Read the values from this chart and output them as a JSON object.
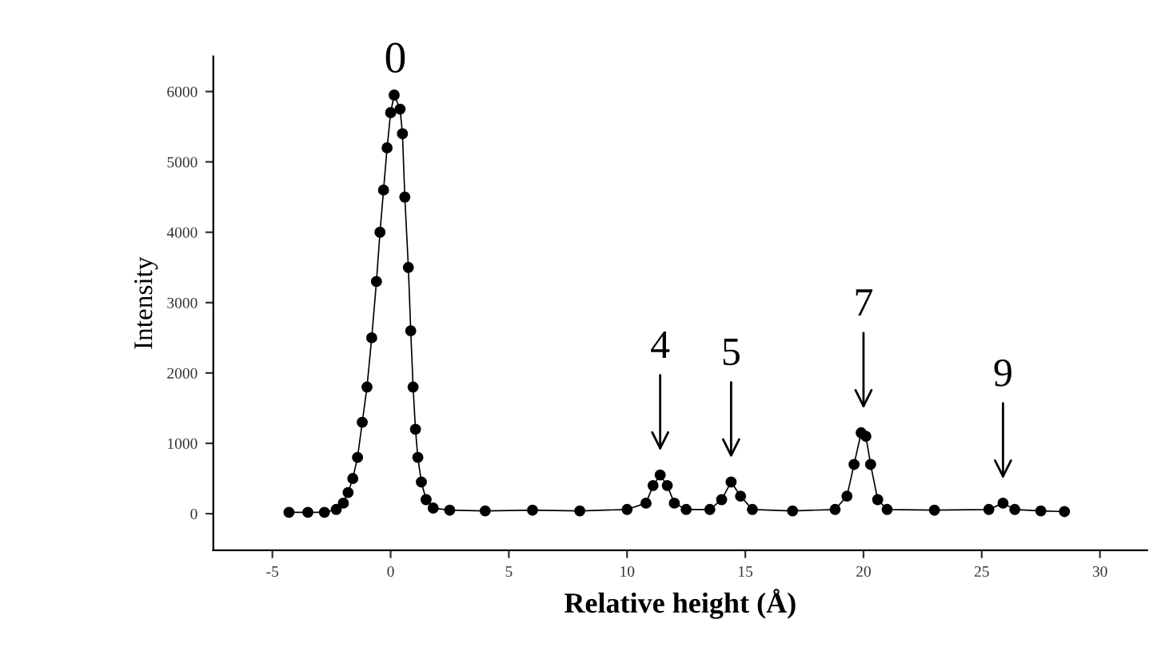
{
  "chart_data": {
    "type": "line",
    "xlabel": "Relative height (Å)",
    "ylabel": "Intensity",
    "x": [
      -4.3,
      -3.5,
      -2.8,
      -2.3,
      -2.0,
      -1.8,
      -1.6,
      -1.4,
      -1.2,
      -1.0,
      -0.8,
      -0.6,
      -0.45,
      -0.3,
      -0.15,
      0.0,
      0.15,
      0.4,
      0.5,
      0.6,
      0.75,
      0.85,
      0.95,
      1.05,
      1.15,
      1.3,
      1.5,
      1.8,
      2.5,
      4,
      6,
      8,
      10,
      10.8,
      11.1,
      11.4,
      11.7,
      12.0,
      12.5,
      13.5,
      14.0,
      14.4,
      14.8,
      15.3,
      17,
      18.8,
      19.3,
      19.6,
      19.9,
      20.1,
      20.3,
      20.6,
      21,
      23,
      25.3,
      25.9,
      26.4,
      27.5,
      28.5
    ],
    "series": [
      {
        "color": "#000000",
        "values": [
          20,
          20,
          20,
          60,
          150,
          300,
          500,
          800,
          1300,
          1800,
          2500,
          3300,
          4000,
          4600,
          5200,
          5700,
          5950,
          5750,
          5400,
          4500,
          3500,
          2600,
          1800,
          1200,
          800,
          450,
          200,
          80,
          50,
          40,
          50,
          40,
          60,
          150,
          400,
          550,
          400,
          150,
          60,
          60,
          200,
          450,
          250,
          60,
          40,
          60,
          250,
          700,
          1150,
          1100,
          700,
          200,
          60,
          50,
          60,
          150,
          60,
          40,
          30
        ]
      }
    ],
    "marker": "circle",
    "line_style": "solid",
    "grid": false,
    "xlim": [
      -7.5,
      32
    ],
    "ylim": [
      -520,
      6500
    ],
    "xticks": [
      -5,
      0,
      5,
      10,
      15,
      20,
      25,
      30
    ],
    "yticks": [
      0,
      1000,
      2000,
      3000,
      4000,
      5000,
      6000
    ],
    "annotations": [
      {
        "text": "0",
        "x": 0.2,
        "y": 5950
      },
      {
        "text": "4",
        "x": 11.4,
        "y": 550
      },
      {
        "text": "5",
        "x": 14.4,
        "y": 450
      },
      {
        "text": "7",
        "x": 20.0,
        "y": 1150
      },
      {
        "text": "9",
        "x": 25.9,
        "y": 150
      }
    ]
  }
}
